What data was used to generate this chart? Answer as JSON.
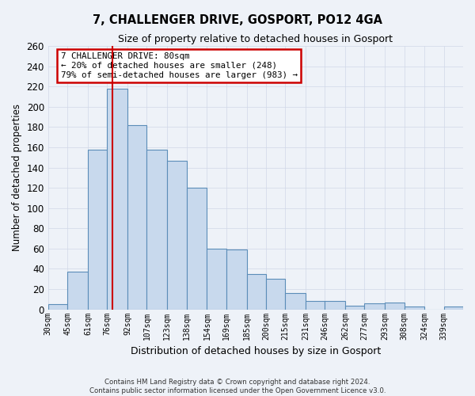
{
  "title": "7, CHALLENGER DRIVE, GOSPORT, PO12 4GA",
  "subtitle": "Size of property relative to detached houses in Gosport",
  "xlabel": "Distribution of detached houses by size in Gosport",
  "ylabel": "Number of detached properties",
  "bin_labels": [
    "30sqm",
    "45sqm",
    "61sqm",
    "76sqm",
    "92sqm",
    "107sqm",
    "123sqm",
    "138sqm",
    "154sqm",
    "169sqm",
    "185sqm",
    "200sqm",
    "215sqm",
    "231sqm",
    "246sqm",
    "262sqm",
    "277sqm",
    "293sqm",
    "308sqm",
    "324sqm",
    "339sqm"
  ],
  "bin_edges": [
    30,
    45,
    61,
    76,
    92,
    107,
    123,
    138,
    154,
    169,
    185,
    200,
    215,
    231,
    246,
    262,
    277,
    293,
    308,
    324,
    339,
    354
  ],
  "bar_values": [
    5,
    37,
    158,
    218,
    182,
    158,
    147,
    120,
    60,
    59,
    35,
    30,
    16,
    8,
    8,
    4,
    6,
    7,
    3,
    0,
    3
  ],
  "bar_color": "#c8d9ed",
  "bar_edge_color": "#5b8db8",
  "property_line_x": 80,
  "vline_color": "#cc0000",
  "annotation_title": "7 CHALLENGER DRIVE: 80sqm",
  "annotation_line1": "← 20% of detached houses are smaller (248)",
  "annotation_line2": "79% of semi-detached houses are larger (983) →",
  "annotation_box_color": "#ffffff",
  "annotation_box_edge": "#cc0000",
  "ylim": [
    0,
    260
  ],
  "yticks": [
    0,
    20,
    40,
    60,
    80,
    100,
    120,
    140,
    160,
    180,
    200,
    220,
    240,
    260
  ],
  "grid_color": "#d0d8e8",
  "background_color": "#eef2f8",
  "footer_line1": "Contains HM Land Registry data © Crown copyright and database right 2024.",
  "footer_line2": "Contains public sector information licensed under the Open Government Licence v3.0."
}
